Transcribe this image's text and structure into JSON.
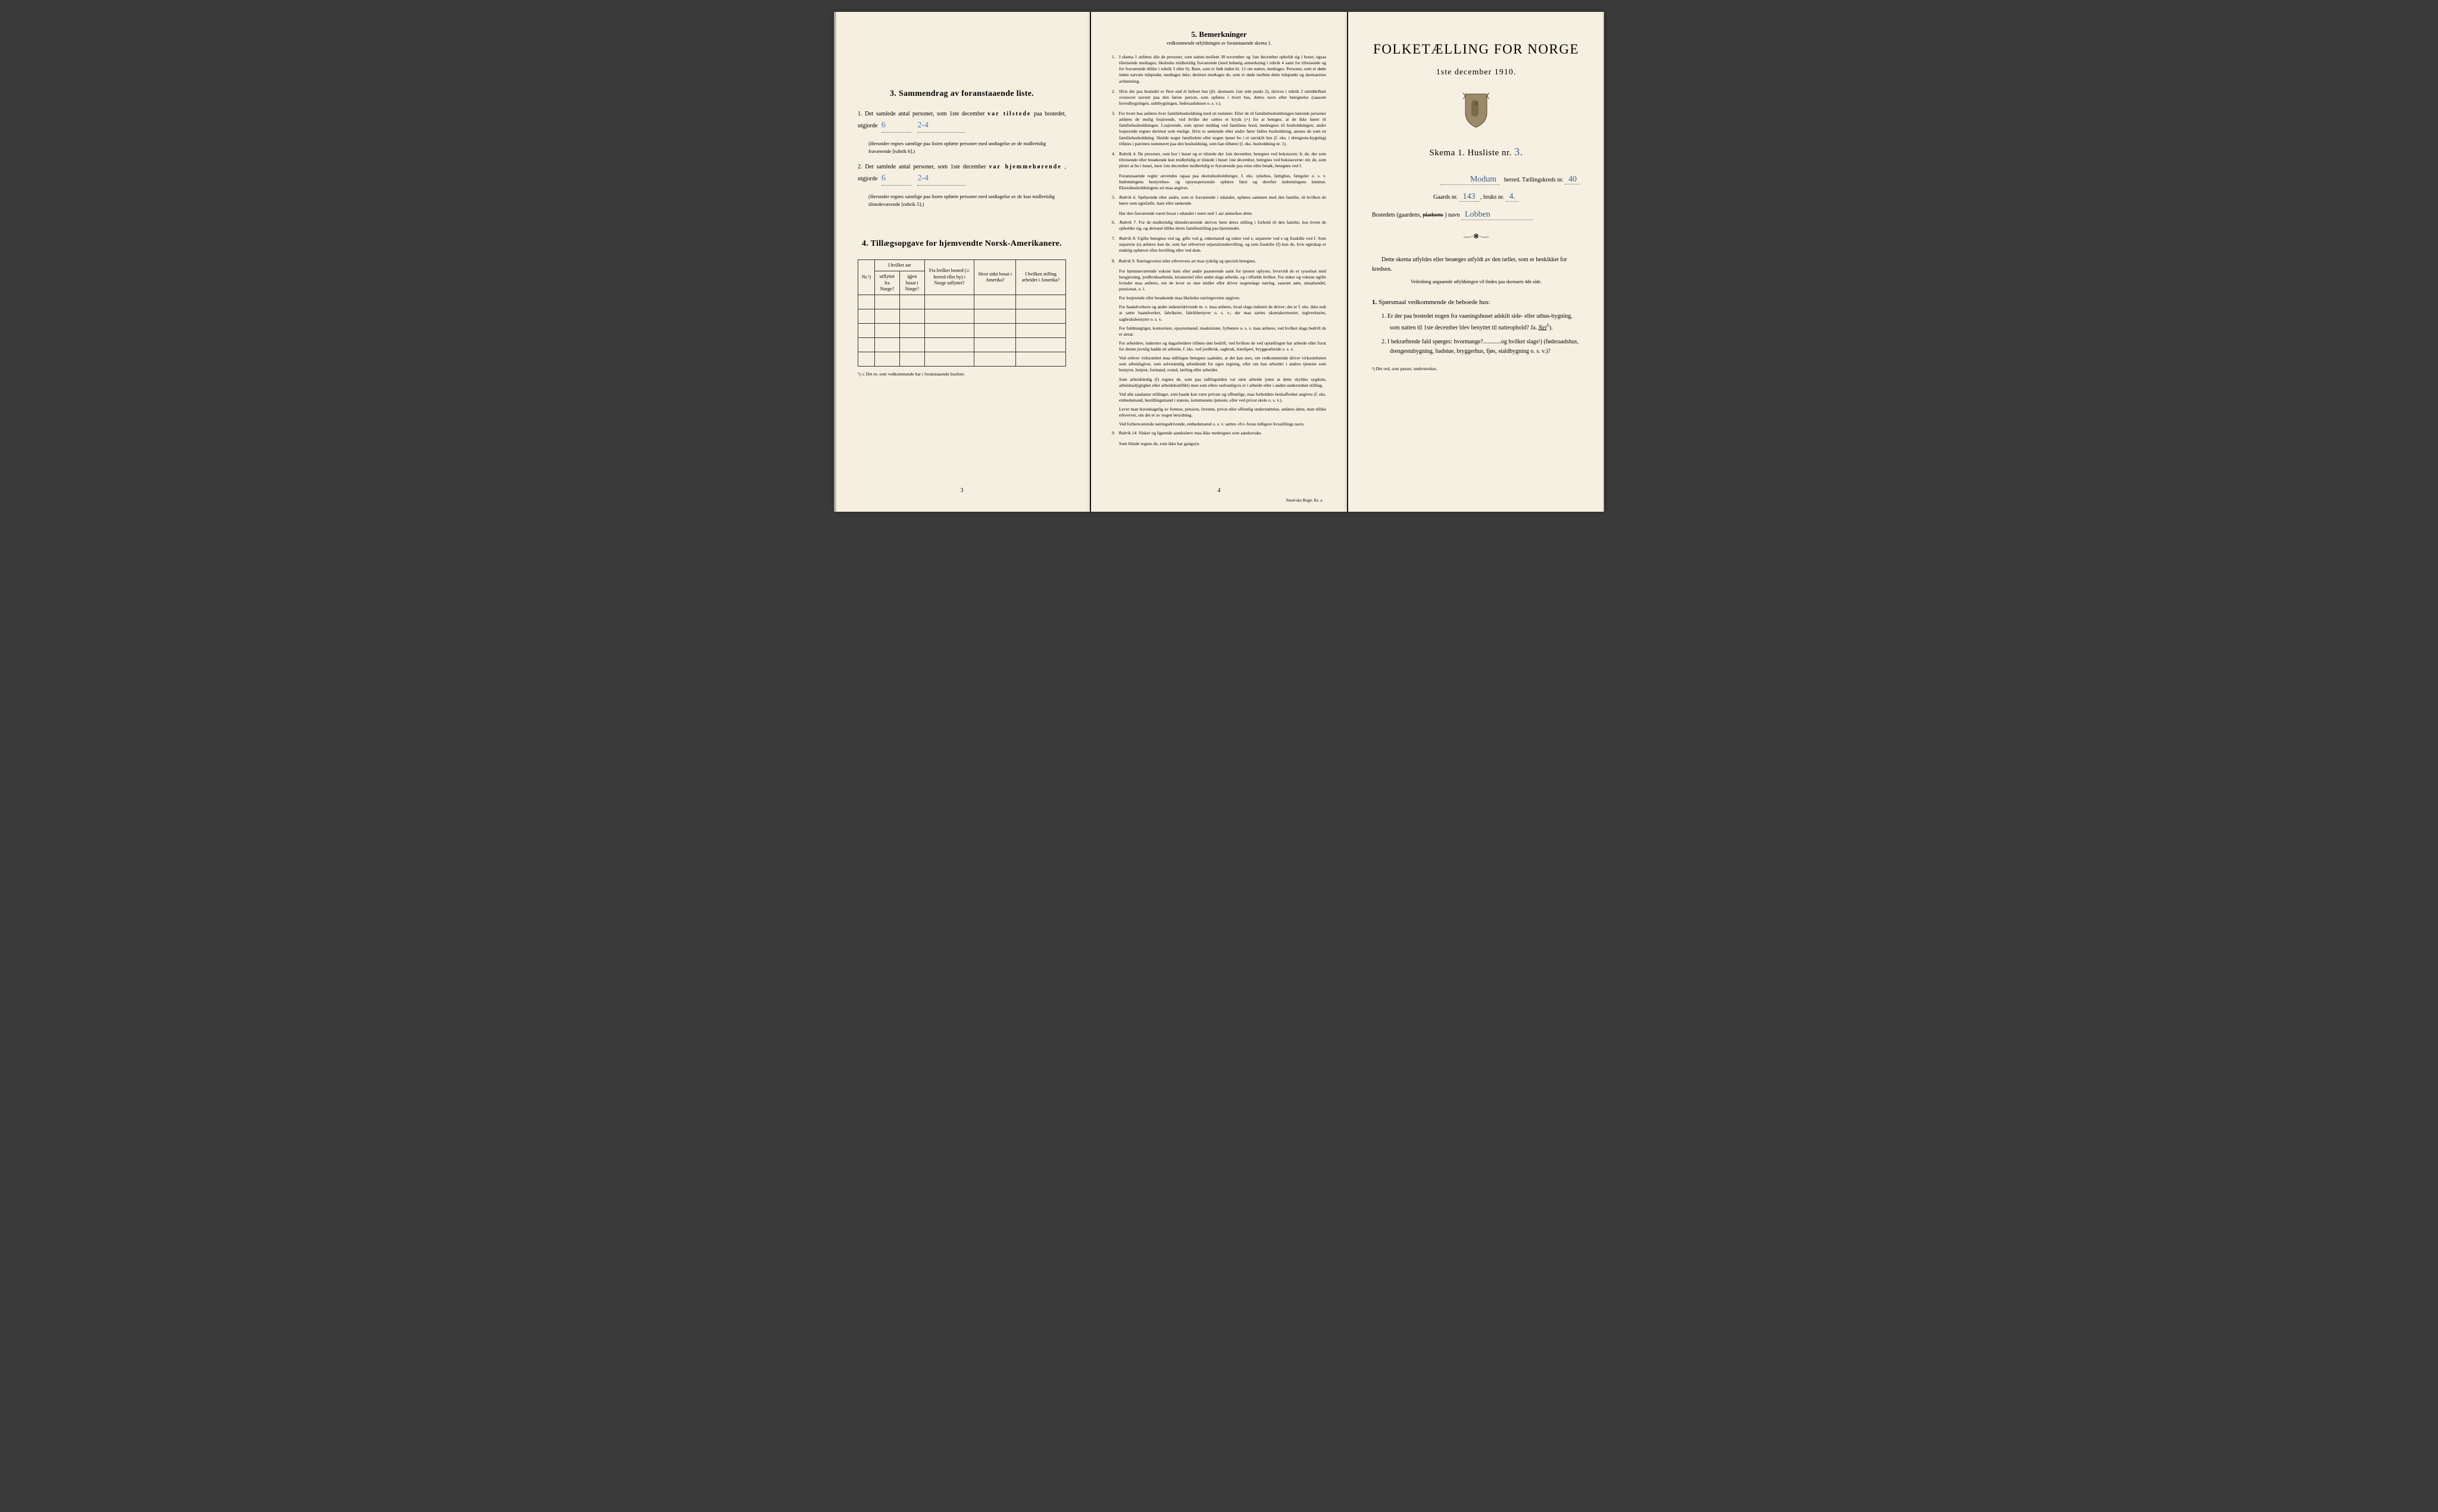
{
  "page_left": {
    "section3": {
      "heading": "3.   Sammendrag av foranstaaende liste.",
      "item1_prefix": "1.  Det samlede antal personer, som 1ste december ",
      "item1_bold": "var tilstede",
      "item1_suffix": " paa bostedet, utgjorde",
      "item1_value1": "6",
      "item1_value2": "2-4",
      "item1_note": "(Herunder regnes samtlige paa listen opførte personer med undtagelse av de midlertidig fraværende [rubrik 6].)",
      "item2_prefix": "2.  Det samlede antal personer, som 1ste december ",
      "item2_bold": "var hjemmehørende",
      "item2_suffix": ", utgjorde",
      "item2_value1": "6",
      "item2_value2": "2-4",
      "item2_note": "(Herunder regnes samtlige paa listen opførte personer med undtagelse av de kun midlertidig tilstedeværende [rubrik 5].)"
    },
    "section4": {
      "heading": "4.   Tillægsopgave for hjemvendte Norsk-Amerikanere.",
      "th_nr": "Nr.¹)",
      "th_hvilket_aar": "I hvilket aar",
      "th_utflyttet": "utflyttet fra Norge?",
      "th_igjen": "igjen bosat i Norge?",
      "th_fra_bosted": "Fra hvilket bosted (ɔ: herred eller by) i Norge utflyttet?",
      "th_sidst_bosat": "Hvor sidst bosat i Amerika?",
      "th_stilling": "I hvilken stilling arbeidet i Amerika?",
      "footnote": "¹) ɔ: Det nr. som vedkommende har i foranstaaende husliste."
    },
    "page_num": "3"
  },
  "page_middle": {
    "heading": "5.   Bemerkninger",
    "subheading": "vedkommende utfyldningen av foranstaaende skema 1.",
    "remarks": [
      "I skema 1 anføres alle de personer, som natten mellem 30 november og 1ste december opholdt sig i huset; ogsaa tilreisende medtages; likeledes midlertidig fraværende (med behørig anmerkning i rubrik 4 samt for tilreisende og for fraværende tillike i rubrik 5 eller 6). Barn, som er født inden kl. 12 om natten, medtages. Personer, som er døde inden nævnte tidspunkt, medtages ikke; derimot medtages de, som er døde mellem dette tidspunkt og skemaernes avhentning.",
      "Hvis der paa bostedet er flere end ét beboet hus (jfr. skemaets 1ste side punkt 2), skrives i rubrik 2 umiddelbart ovenover navnet paa den første person, som opføres i hvert hus, dettes navn eller betegnelse (saasom hovedbygningen, sidebygningen, føderaadshuset o. s. v.).",
      "For hvert hus anføres hver familiehusholdning med sit nummer. Efter de til familiehusholdningen hørende personer anføres de enslig losjerende, ved hvilke der sættes et kryds (×) for at betegne, at de ikke hører til familiehusholdningen. Losjerende, som spiser middag ved familiens bord, medregnes til husholdningen; andre losjerende regnes derimot som enslige. Hvis to søskende eller andre fører fælles husholdning, ansees de som en familiehusholdning. Skulde noget familielem eller nogen tjener bo i et særskilt hus (f. eks. i drengestu-bygning) tilføies i parentes nummeret paa den husholdning, som han tilhører (f. eks. husholdning nr. 1).",
      "Rubrik 4. De personer, som bor i huset og er tilstede der 1ste december, betegnes ved bokstaven: b; de, der som tilreisende eller besøkende kun midlertidig er tilstede i huset 1ste december, betegnes ved bokstaverne: mt; de, som pleier at bo i huset, men 1ste december midlertidig er fraværende paa reise eller besøk, betegnes ved f."
    ],
    "sub_remarks": [
      "Foranstaaende regler anvendes ogsaa paa ekstrahusholdninger, f. eks. sykehus, fattighus, fængsler o. s. v. Indretningens bestyrelses- og opsynspersonale opføres først og derefter indretningens lemmer. Ekstrahusholdningens art maa angives.",
      "Rubrik 6. Sjøfarende eller andre, som er fraværende i utlandet, opføres sammen med den familie, til hvilken de hører som egtefælle, barn eller søskende.",
      "Har den fraværende været bosat i utlandet i mere end 1 aar anmerkes dette.",
      "Rubrik 7. For de midlertidig tilstedeværende skrives først deres stilling i forhold til den familie, hos hvem de opholder sig, og dernæst tillike deres familiestilling paa hjemstedet.",
      "Rubrik 8. Ugifte betegnes ved ug, gifte ved g, enkemænd og enker ved e, separerte ved s og fraskilte ved f. Som separerte (s) anføres kun de, som har erhvervet separationsbevilling, og som fraskilte (f) kun de, hvis egteskap er endelig ophævet efter bevilling eller ved dom.",
      "Rubrik 9. Næringsveien eller erhvervets art maa tydelig og specielt betegnes.",
      "For hjemmeværende voksne barn eller andre paarørende samt for tjenere oplyses, hvorvidt de er sysselsat med husgjerning, jordbruksarbeide, kreaturstel eller andet slags arbeide, og i tilfælde hvilket. For enker og voksne ugifte kvinder maa anføres, om de lever av sine midler eller driver nogenslags næring, saasom søm, smaahandel, pensionat, o. l.",
      "For losjerende eller besøkende maa likeledes næringsveien opgives.",
      "For haandverkere og andre industridrivende m. v. maa anføres, hvad slags industri de driver; det er f. eks. ikke nok at sætte haandverker, fabrikeier, fabrikbestyrer o. s. v.; der maa sættes skomakermester, teglverkseier, sagbruksbestyrer o. s. v.",
      "For fuldmægtiger, kontorister, opsynsmænd, maskinister, fyrbøtere o. s. v. maa anføres, ved hvilket slags bedrift de er ansat.",
      "For arbeidere, inderster og dagarbeidere tilføies den bedrift, ved hvilken de ved optællingen har arbeide eller forut for denne jevnlig hadde sit arbeide, f. eks. ved jordbruk, sagbruk, træsliperi, bryggearbeide o. s. v.",
      "Ved enhver virksomhet maa stillingen betegnes saaledes, at det kan sees, om vedkommende driver virksomheten som arbeidsgiver, som selvstændig arbeidende for egen regning, eller om han arbeider i andres tjeneste som bestyrer, betjent, formand, svend, lærling eller arbeider.",
      "Som arbeidsledig (l) regnes de, som paa tællingstiden var uten arbeide (uten at dette skyldes sygdom, arbeidsudygtighet eller arbeidskonflikt) men som ellers sedvanligvis er i arbeide eller i anden underordnet stilling.",
      "Ved alle saadanne stillinger, som baade kan være private og offentlige, maa forholdets beskaffenhet angives (f. eks. embedsmand, bestillingsmand i statens, kommunens tjeneste, eller ved privat skole o. s. v.).",
      "Lever man hovedsagelig av formue, pension, livrente, privat eller offentlig understøttelse, anføres dette, men tillike erhvervet, om det er av nogen betydning.",
      "Ved forhenværende næringsdrivende, embedsmænd o. s. v. sættes «fv» foran tidligere livsstillings navn.",
      "Rubrik 14. Sinker og lignende aandssløve maa ikke medregnes som aandssvake.",
      "Som blinde regnes de, som ikke har gangsyn."
    ],
    "page_num": "4",
    "imprint": "Steen'ske Bogtr. Kr. a."
  },
  "page_right": {
    "title": "FOLKETÆLLING FOR NORGE",
    "date": "1ste december 1910.",
    "skema_prefix": "Skema 1.   Husliste nr.",
    "husliste_nr": "3.",
    "herred_val": "Modum",
    "herred_label": "herred.   Tællingskreds nr.",
    "kreds_nr": "40",
    "gaard_prefix": "Gaards nr.",
    "gaard_nr": "143",
    "bruk_prefix": ",  bruks nr.",
    "bruks_nr": "4.",
    "bosted_label": "Bostedets (gaardens,",
    "bosted_struck": "pladsens",
    "bosted_suffix": ") navn",
    "bosted_val": "Lobben",
    "instruction": "Dette skema utfyldes eller besørges utfyldt av den tæller, som er beskikket for kredsen.",
    "small_instr": "Veiledning angaaende utfyldningen vil findes paa skemaets 4de side.",
    "q_heading": "Spørsmaal vedkommende de beboede hus:",
    "q1": "Er der paa bostedet nogen fra vaaningshuset adskilt side- eller uthus-bygning, som natten til 1ste december blev benyttet til natteophold?   Ja.   ",
    "q1_answer": "Nei",
    "q2": "I bekræftende fald spørges: hvormange?............og hvilket slags¹) (føderaadshus, drengestubygning, badstue, bryggerhus, fjøs, staldbygning o. s. v.)?",
    "footnote": "¹) Det ord, som passer, understrekes."
  },
  "colors": {
    "paper": "#f4efe0",
    "paper_right": "#f6f0e2",
    "text": "#1a1a1a",
    "handwriting": "#3a5a8a",
    "background": "#3a3a3a"
  }
}
